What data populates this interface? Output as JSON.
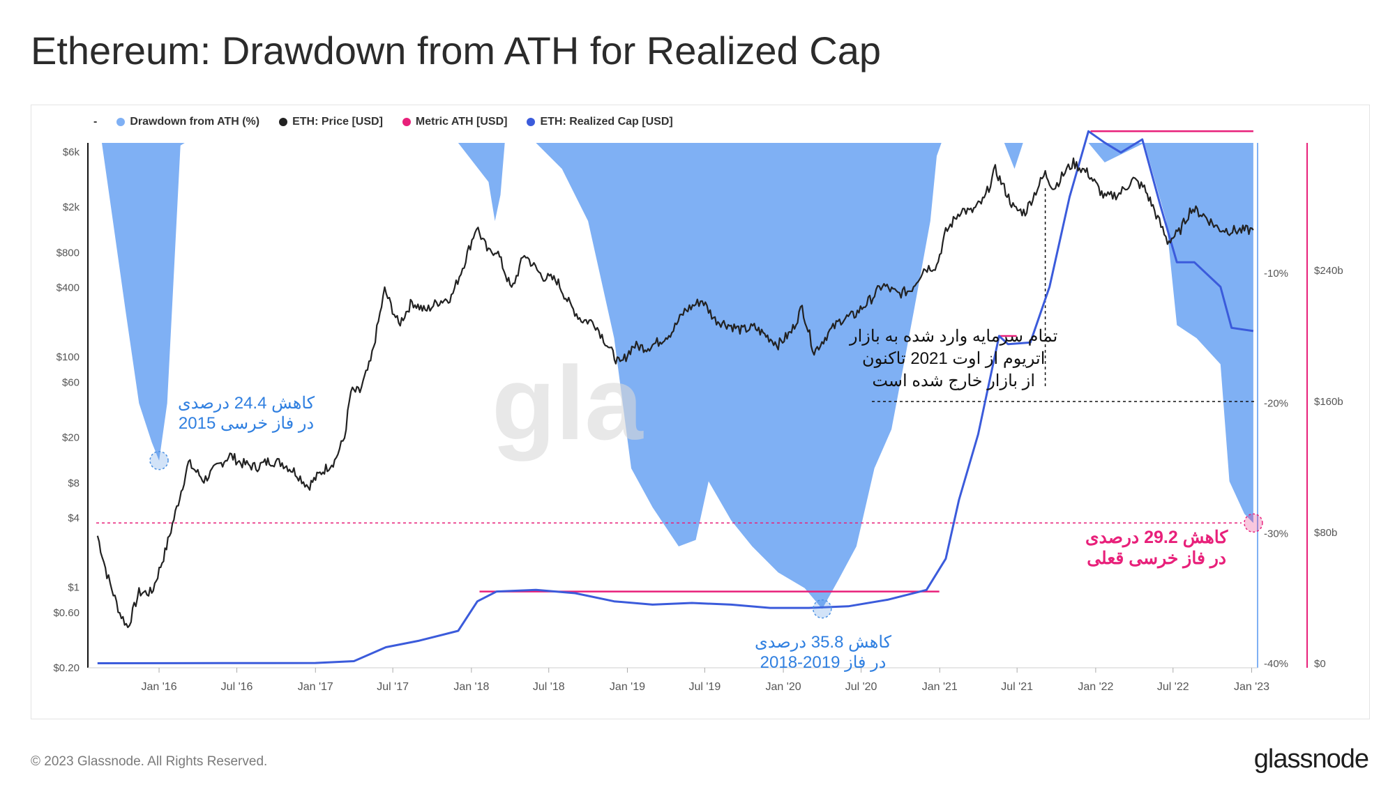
{
  "title": "Ethereum: Drawdown from ATH for Realized Cap",
  "legend": {
    "dash": "-",
    "items": [
      {
        "label": "Drawdown from ATH (%)",
        "color": "#7fb0f4"
      },
      {
        "label": "ETH: Price [USD]",
        "color": "#222222"
      },
      {
        "label": "Metric ATH [USD]",
        "color": "#e8207a"
      },
      {
        "label": "ETH: Realized Cap [USD]",
        "color": "#3b5bdb"
      }
    ]
  },
  "watermark": "gla",
  "footer": {
    "copyright": "© 2023 Glassnode. All Rights Reserved.",
    "logo": "glassnode"
  },
  "annotations": {
    "bear2015_line1": "کاهش 24.4 درصدی",
    "bear2015_line2": "در فاز خرسی 2015",
    "bear2018_line1": "کاهش 35.8 درصدی",
    "bear2018_line2": "در فاز 2019-2018",
    "current_line1": "کاهش 29.2 درصدی",
    "current_line2": "در فاز خرسی قعلی",
    "exit_line1": "تمام سرمایه وارد شده به بازار",
    "exit_line2": "اتریوم از اوت 2021 تاکنون",
    "exit_line3": "از بازار خارج شده است"
  },
  "chart_data": {
    "type": "line",
    "x_ticks": [
      "Jan '16",
      "Jul '16",
      "Jan '17",
      "Jul '17",
      "Jan '18",
      "Jul '18",
      "Jan '19",
      "Jul '19",
      "Jan '20",
      "Jul '20",
      "Jan '21",
      "Jul '21",
      "Jan '22",
      "Jul '22",
      "Jan '23"
    ],
    "y_left_ticks": [
      "$6k",
      "$2k",
      "$800",
      "$400",
      "$100",
      "$60",
      "$20",
      "$8",
      "$4",
      "$1",
      "$0.60",
      "$0.20"
    ],
    "y_left_values": [
      6000,
      2000,
      800,
      400,
      100,
      60,
      20,
      8,
      4,
      1,
      0.6,
      0.2
    ],
    "y_left_scale": "log",
    "y_mid_ticks": [
      "-10%",
      "-20%",
      "-30%",
      "-40%"
    ],
    "y_mid_values": [
      -10,
      -20,
      -30,
      -40
    ],
    "y_right_ticks": [
      "$240b",
      "$160b",
      "$80b",
      "$0"
    ],
    "y_right_values": [
      240,
      160,
      80,
      0
    ],
    "series": [
      {
        "name": "ETH: Price [USD]",
        "color": "#222222",
        "points": [
          [
            "2015-08-10",
            2.8
          ],
          [
            "2015-09-01",
            1.3
          ],
          [
            "2015-10-01",
            0.6
          ],
          [
            "2015-10-20",
            0.45
          ],
          [
            "2015-11-15",
            0.9
          ],
          [
            "2015-12-15",
            0.9
          ],
          [
            "2016-01-15",
            2.0
          ],
          [
            "2016-02-15",
            5.5
          ],
          [
            "2016-03-10",
            12
          ],
          [
            "2016-04-15",
            8.5
          ],
          [
            "2016-05-15",
            11
          ],
          [
            "2016-06-15",
            14
          ],
          [
            "2016-07-10",
            12
          ],
          [
            "2016-08-15",
            11
          ],
          [
            "2016-09-15",
            12.5
          ],
          [
            "2016-10-15",
            12
          ],
          [
            "2016-11-15",
            10
          ],
          [
            "2016-12-15",
            7.5
          ],
          [
            "2017-01-15",
            10
          ],
          [
            "2017-02-15",
            12.5
          ],
          [
            "2017-03-10",
            20
          ],
          [
            "2017-03-25",
            50
          ],
          [
            "2017-04-15",
            50
          ],
          [
            "2017-05-10",
            90
          ],
          [
            "2017-06-12",
            380
          ],
          [
            "2017-07-15",
            190
          ],
          [
            "2017-08-15",
            300
          ],
          [
            "2017-09-15",
            250
          ],
          [
            "2017-10-15",
            300
          ],
          [
            "2017-11-15",
            330
          ],
          [
            "2017-12-15",
            650
          ],
          [
            "2018-01-13",
            1350
          ],
          [
            "2018-02-10",
            800
          ],
          [
            "2018-03-01",
            850
          ],
          [
            "2018-04-05",
            380
          ],
          [
            "2018-05-05",
            780
          ],
          [
            "2018-06-15",
            500
          ],
          [
            "2018-07-20",
            460
          ],
          [
            "2018-08-20",
            280
          ],
          [
            "2018-09-15",
            210
          ],
          [
            "2018-10-15",
            200
          ],
          [
            "2018-11-25",
            110
          ],
          [
            "2018-12-15",
            85
          ],
          [
            "2019-01-15",
            125
          ],
          [
            "2019-02-15",
            120
          ],
          [
            "2019-03-15",
            135
          ],
          [
            "2019-04-15",
            165
          ],
          [
            "2019-05-15",
            250
          ],
          [
            "2019-06-25",
            310
          ],
          [
            "2019-07-25",
            210
          ],
          [
            "2019-08-25",
            190
          ],
          [
            "2019-09-25",
            170
          ],
          [
            "2019-10-25",
            180
          ],
          [
            "2019-11-25",
            150
          ],
          [
            "2019-12-20",
            128
          ],
          [
            "2020-01-20",
            165
          ],
          [
            "2020-02-14",
            270
          ],
          [
            "2020-03-13",
            110
          ],
          [
            "2020-04-15",
            160
          ],
          [
            "2020-05-15",
            210
          ],
          [
            "2020-06-15",
            230
          ],
          [
            "2020-07-25",
            320
          ],
          [
            "2020-08-20",
            420
          ],
          [
            "2020-09-25",
            350
          ],
          [
            "2020-10-25",
            380
          ],
          [
            "2020-11-25",
            580
          ],
          [
            "2020-12-25",
            620
          ],
          [
            "2021-01-15",
            1200
          ],
          [
            "2021-02-20",
            1900
          ],
          [
            "2021-03-15",
            1800
          ],
          [
            "2021-04-15",
            2300
          ],
          [
            "2021-05-11",
            4200
          ],
          [
            "2021-06-25",
            1900
          ],
          [
            "2021-07-20",
            1800
          ],
          [
            "2021-08-25",
            3300
          ],
          [
            "2021-09-05",
            3900
          ],
          [
            "2021-09-25",
            2900
          ],
          [
            "2021-10-25",
            4200
          ],
          [
            "2021-11-10",
            4800
          ],
          [
            "2021-12-15",
            3900
          ],
          [
            "2022-01-22",
            2400
          ],
          [
            "2022-02-25",
            2600
          ],
          [
            "2022-03-30",
            3450
          ],
          [
            "2022-04-25",
            2900
          ],
          [
            "2022-05-15",
            2000
          ],
          [
            "2022-06-18",
            1000
          ],
          [
            "2022-07-15",
            1200
          ],
          [
            "2022-08-13",
            1950
          ],
          [
            "2022-09-10",
            1700
          ],
          [
            "2022-10-15",
            1300
          ],
          [
            "2022-11-10",
            1250
          ],
          [
            "2022-12-15",
            1250
          ],
          [
            "2023-01-05",
            1260
          ]
        ]
      },
      {
        "name": "ETH: Realized Cap [USD]",
        "color": "#3b5bdb",
        "points": [
          [
            "2015-08-10",
            0.2
          ],
          [
            "2016-06-01",
            0.3
          ],
          [
            "2017-01-01",
            0.4
          ],
          [
            "2017-04-01",
            1.5
          ],
          [
            "2017-06-15",
            10
          ],
          [
            "2017-09-01",
            14
          ],
          [
            "2017-12-01",
            20
          ],
          [
            "2018-01-15",
            38
          ],
          [
            "2018-03-01",
            44
          ],
          [
            "2018-06-01",
            45
          ],
          [
            "2018-09-01",
            43
          ],
          [
            "2018-12-01",
            38
          ],
          [
            "2019-03-01",
            36
          ],
          [
            "2019-06-01",
            37
          ],
          [
            "2019-09-01",
            36
          ],
          [
            "2019-12-01",
            34
          ],
          [
            "2020-03-01",
            34
          ],
          [
            "2020-06-01",
            35
          ],
          [
            "2020-09-01",
            39
          ],
          [
            "2020-12-01",
            45
          ],
          [
            "2021-01-15",
            64
          ],
          [
            "2021-02-15",
            100
          ],
          [
            "2021-04-01",
            140
          ],
          [
            "2021-05-20",
            200
          ],
          [
            "2021-06-10",
            195
          ],
          [
            "2021-08-01",
            196
          ],
          [
            "2021-09-15",
            230
          ],
          [
            "2021-11-01",
            285
          ],
          [
            "2021-12-15",
            325
          ],
          [
            "2022-01-22",
            318
          ],
          [
            "2022-03-01",
            312
          ],
          [
            "2022-04-20",
            320
          ],
          [
            "2022-06-01",
            280
          ],
          [
            "2022-07-10",
            245
          ],
          [
            "2022-08-20",
            245
          ],
          [
            "2022-10-20",
            230
          ],
          [
            "2022-11-15",
            205
          ],
          [
            "2023-01-05",
            203
          ]
        ]
      },
      {
        "name": "Drawdown from ATH (%)",
        "color": "#7fb0f4",
        "type": "area",
        "points": [
          [
            "2015-08-20",
            0
          ],
          [
            "2015-09-15",
            -6
          ],
          [
            "2015-10-15",
            -13
          ],
          [
            "2015-11-15",
            -20
          ],
          [
            "2015-12-15",
            -23
          ],
          [
            "2016-01-01",
            -24.4
          ],
          [
            "2016-01-20",
            -20
          ],
          [
            "2016-02-20",
            -0.2
          ],
          [
            "2016-03-01",
            0
          ],
          [
            "2017-12-01",
            0
          ],
          [
            "2018-02-10",
            -3
          ],
          [
            "2018-02-25",
            -6
          ],
          [
            "2018-03-10",
            -4
          ],
          [
            "2018-03-20",
            0
          ],
          [
            "2018-06-01",
            0
          ],
          [
            "2018-08-01",
            -2
          ],
          [
            "2018-10-01",
            -6
          ],
          [
            "2018-12-01",
            -15
          ],
          [
            "2019-01-10",
            -25
          ],
          [
            "2019-03-01",
            -28
          ],
          [
            "2019-05-01",
            -31
          ],
          [
            "2019-06-10",
            -30.5
          ],
          [
            "2019-07-10",
            -26
          ],
          [
            "2019-09-01",
            -29
          ],
          [
            "2019-10-20",
            -31
          ],
          [
            "2019-12-20",
            -33
          ],
          [
            "2020-02-20",
            -34.2
          ],
          [
            "2020-04-01",
            -35.8
          ],
          [
            "2020-05-10",
            -33.5
          ],
          [
            "2020-06-20",
            -31
          ],
          [
            "2020-08-01",
            -25
          ],
          [
            "2020-09-10",
            -22
          ],
          [
            "2020-11-01",
            -13
          ],
          [
            "2020-12-10",
            -6
          ],
          [
            "2020-12-25",
            -1
          ],
          [
            "2021-01-05",
            0
          ],
          [
            "2021-06-01",
            0
          ],
          [
            "2021-06-25",
            -2
          ],
          [
            "2021-07-15",
            0
          ],
          [
            "2021-09-01",
            0
          ],
          [
            "2021-12-15",
            0
          ],
          [
            "2022-01-22",
            -1.5
          ],
          [
            "2022-04-25",
            0
          ],
          [
            "2022-06-15",
            -6
          ],
          [
            "2022-07-10",
            -14
          ],
          [
            "2022-08-25",
            -15
          ],
          [
            "2022-10-20",
            -17
          ],
          [
            "2022-11-10",
            -26
          ],
          [
            "2022-12-15",
            -28.5
          ],
          [
            "2023-01-05",
            -29.2
          ]
        ]
      }
    ],
    "reference_lines": [
      {
        "type": "metric_ath",
        "label": "Metric ATH [USD]",
        "from": "2018-01-20",
        "to": "2020-12-31",
        "value_b": 44
      },
      {
        "type": "metric_ath",
        "from": "2021-05-20",
        "to": "2021-06-30",
        "value_b": 200
      },
      {
        "type": "metric_ath",
        "from": "2021-12-20",
        "to": "2023-01-05",
        "value_b": 325
      },
      {
        "type": "dotted_drawdown",
        "value_pct": -29.2
      },
      {
        "type": "dotted_black_vertical",
        "date": "2021-09-05"
      },
      {
        "type": "dotted_black_horizontal",
        "value_b": 160,
        "from": "2021-01-01"
      }
    ],
    "markers": [
      {
        "date": "2016-01-01",
        "value_pct": -24.4,
        "color": "#4a90e2"
      },
      {
        "date": "2020-04-01",
        "value_pct": -35.8,
        "color": "#4a90e2"
      },
      {
        "date": "2023-01-05",
        "value_pct": -29.2,
        "color": "#e8207a"
      }
    ],
    "x_range": [
      "2015-08-07",
      "2023-01-10"
    ],
    "y_left_range": [
      0.2,
      6000
    ],
    "y_mid_range": [
      -40,
      0
    ],
    "y_right_range": [
      0,
      320
    ]
  }
}
